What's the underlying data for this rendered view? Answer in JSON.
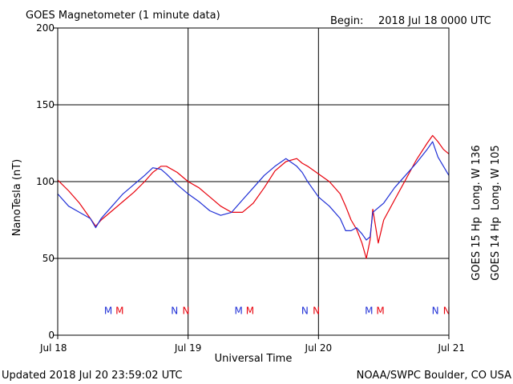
{
  "header": {
    "title": "GOES Magnetometer (1 minute data)",
    "begin_label": "Begin:",
    "begin_value": "2018 Jul 18 0000 UTC"
  },
  "footer": {
    "updated": "Updated 2018 Jul 20 23:59:02 UTC",
    "credit": "NOAA/SWPC Boulder, CO USA"
  },
  "colors": {
    "goes15": "#e8000b",
    "goes14": "#1f2fd6"
  },
  "chart_data": {
    "type": "line",
    "xlabel": "Universal Time",
    "ylabel": "NanoTesla (nT)",
    "xlim": [
      0,
      72
    ],
    "ylim": [
      0,
      200
    ],
    "yticks": [
      0,
      50,
      100,
      150,
      200
    ],
    "xticks": [
      {
        "hour": 0,
        "label": "Jul 18"
      },
      {
        "hour": 24,
        "label": "Jul 19"
      },
      {
        "hour": 48,
        "label": "Jul 20"
      },
      {
        "hour": 72,
        "label": "Jul 21"
      }
    ],
    "grid": true,
    "legend_placement": "right, rotated vertical",
    "series": [
      {
        "name": "GOES 15 Hp",
        "legend_label": "GOES 15 Hp  Long. W 136",
        "color": "#e8000b",
        "x": [
          0,
          2,
          4,
          6,
          7,
          8,
          10,
          12,
          14,
          16,
          17.5,
          19,
          20,
          22,
          24,
          26,
          28,
          30,
          32,
          34,
          36,
          38,
          40,
          42,
          44,
          45,
          46,
          48,
          50,
          52,
          53,
          54,
          55,
          56,
          56.8,
          57.5,
          58,
          59,
          60,
          62,
          64,
          66,
          68,
          69,
          70,
          71,
          72
        ],
        "y": [
          101,
          94,
          86,
          76,
          71,
          75,
          81,
          87,
          93,
          100,
          106,
          110,
          110,
          106,
          100,
          96,
          90,
          84,
          80,
          80,
          86,
          96,
          107,
          113,
          115,
          112,
          110,
          105,
          100,
          92,
          84,
          75,
          69,
          60,
          50,
          62,
          82,
          60,
          75,
          88,
          101,
          114,
          125,
          130,
          126,
          121,
          118
        ]
      },
      {
        "name": "GOES 14 Hp",
        "legend_label": "GOES 14 Hp  Long. W 105",
        "color": "#1f2fd6",
        "x": [
          0,
          2,
          4,
          6,
          7,
          8,
          10,
          12,
          14,
          16,
          17.5,
          19,
          20,
          22,
          24,
          26,
          28,
          30,
          32,
          34,
          36,
          38,
          40,
          42,
          44,
          45,
          46,
          48,
          50,
          52,
          53,
          54,
          55,
          56,
          56.8,
          57.5,
          58,
          60,
          62,
          64,
          66,
          68,
          69,
          70,
          71,
          72
        ],
        "y": [
          92,
          84,
          80,
          76,
          70,
          76,
          84,
          92,
          98,
          104,
          109,
          108,
          105,
          98,
          92,
          87,
          81,
          78,
          80,
          88,
          96,
          104,
          110,
          115,
          110,
          106,
          100,
          90,
          84,
          76,
          68,
          68,
          70,
          66,
          62,
          64,
          80,
          86,
          96,
          104,
          112,
          121,
          126,
          116,
          110,
          104
        ]
      }
    ],
    "markers": [
      {
        "hour": 9.3,
        "letter": "M",
        "color": "#1f2fd6"
      },
      {
        "hour": 11.4,
        "letter": "M",
        "color": "#e8000b"
      },
      {
        "hour": 21.5,
        "letter": "N",
        "color": "#1f2fd6"
      },
      {
        "hour": 23.6,
        "letter": "N",
        "color": "#e8000b"
      },
      {
        "hour": 33.3,
        "letter": "M",
        "color": "#1f2fd6"
      },
      {
        "hour": 35.4,
        "letter": "M",
        "color": "#e8000b"
      },
      {
        "hour": 45.5,
        "letter": "N",
        "color": "#1f2fd6"
      },
      {
        "hour": 47.6,
        "letter": "N",
        "color": "#e8000b"
      },
      {
        "hour": 57.3,
        "letter": "M",
        "color": "#1f2fd6"
      },
      {
        "hour": 59.4,
        "letter": "M",
        "color": "#e8000b"
      },
      {
        "hour": 69.5,
        "letter": "N",
        "color": "#1f2fd6"
      },
      {
        "hour": 71.6,
        "letter": "N",
        "color": "#e8000b"
      }
    ],
    "marker_level": 16
  }
}
